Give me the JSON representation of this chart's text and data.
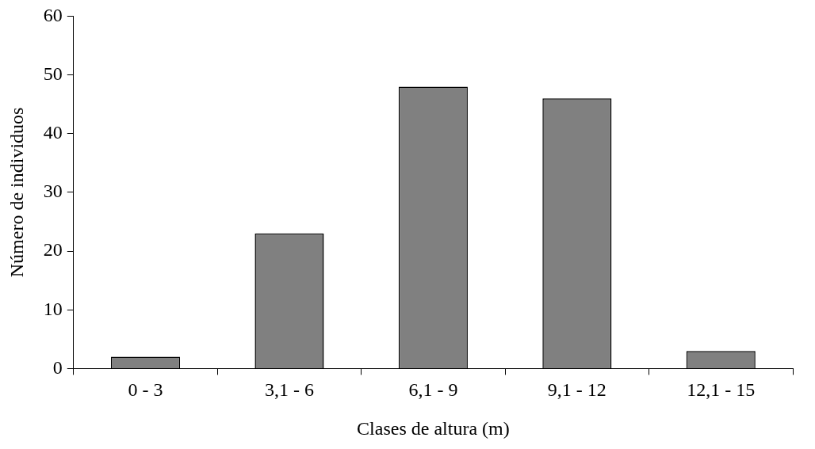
{
  "chart_data": {
    "type": "bar",
    "xlabel": "Clases de altura (m)",
    "ylabel": "Número de individuos",
    "categories": [
      "0 - 3",
      "3,1 - 6",
      "6,1 - 9",
      "9,1 - 12",
      "12,1 - 15"
    ],
    "values": [
      2,
      23,
      48,
      46,
      3
    ],
    "color": "#808080",
    "ylim": [
      0,
      60
    ],
    "yticks": [
      0,
      10,
      20,
      30,
      40,
      50,
      60
    ],
    "grid": false,
    "legend": false
  }
}
